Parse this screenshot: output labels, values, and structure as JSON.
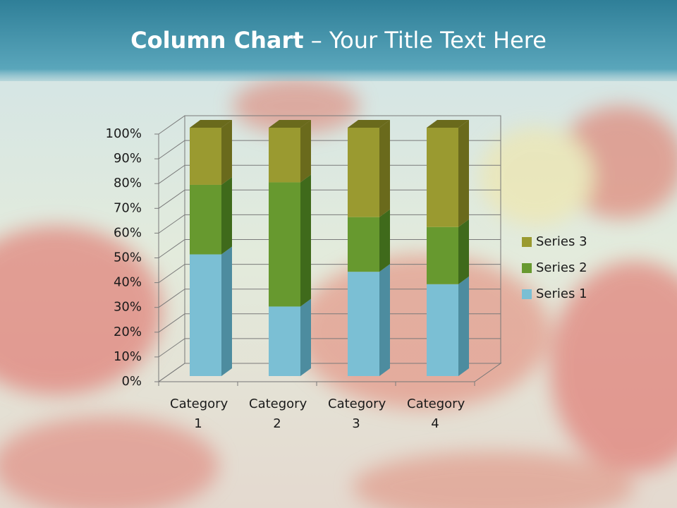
{
  "chart_data": {
    "type": "stacked_bar_3d",
    "title_bold": "Column Chart",
    "title_rest": "– Your Title Text Here",
    "categories": [
      "Category 1",
      "Category 2",
      "Category 3",
      "Category 4"
    ],
    "series": [
      {
        "name": "Series 1",
        "color": "#7bbfd4",
        "side": "#4d8c9f",
        "values": [
          49,
          28,
          42,
          37
        ]
      },
      {
        "name": "Series 2",
        "color": "#67992f",
        "side": "#3f6a1b",
        "values": [
          28,
          50,
          22,
          23
        ]
      },
      {
        "name": "Series 3",
        "color": "#9a9a30",
        "side": "#6a6a1c",
        "values": [
          23,
          22,
          36,
          40
        ]
      }
    ],
    "ylim": [
      0,
      100
    ],
    "yticks": [
      {
        "value": 0,
        "label": "0%"
      },
      {
        "value": 10,
        "label": "10%"
      },
      {
        "value": 20,
        "label": "20%"
      },
      {
        "value": 30,
        "label": "30%"
      },
      {
        "value": 40,
        "label": "40%"
      },
      {
        "value": 50,
        "label": "50%"
      },
      {
        "value": 60,
        "label": "60%"
      },
      {
        "value": 70,
        "label": "70%"
      },
      {
        "value": 80,
        "label": "80%"
      },
      {
        "value": 90,
        "label": "90%"
      },
      {
        "value": 100,
        "label": "100%"
      }
    ],
    "grid": true,
    "legend": "right"
  }
}
